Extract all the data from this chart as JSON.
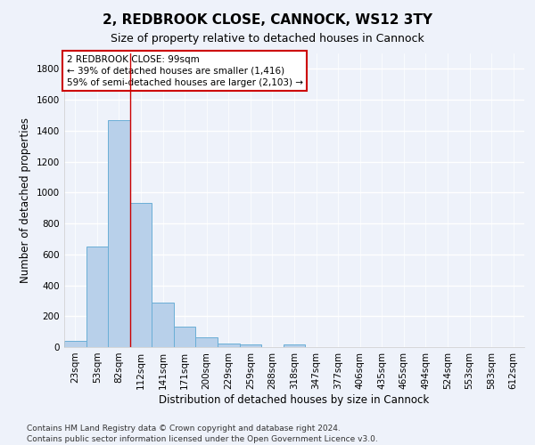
{
  "title_line1": "2, REDBROOK CLOSE, CANNOCK, WS12 3TY",
  "title_line2": "Size of property relative to detached houses in Cannock",
  "xlabel": "Distribution of detached houses by size in Cannock",
  "ylabel": "Number of detached properties",
  "bin_labels": [
    "23sqm",
    "53sqm",
    "82sqm",
    "112sqm",
    "141sqm",
    "171sqm",
    "200sqm",
    "229sqm",
    "259sqm",
    "288sqm",
    "318sqm",
    "347sqm",
    "377sqm",
    "406sqm",
    "435sqm",
    "465sqm",
    "494sqm",
    "524sqm",
    "553sqm",
    "583sqm",
    "612sqm"
  ],
  "bar_values": [
    40,
    650,
    1470,
    935,
    290,
    130,
    65,
    25,
    15,
    0,
    15,
    0,
    0,
    0,
    0,
    0,
    0,
    0,
    0,
    0,
    0
  ],
  "bar_color": "#b8d0ea",
  "bar_edge_color": "#6aaed6",
  "vline_x": 2.5,
  "annotation_text": "2 REDBROOK CLOSE: 99sqm\n← 39% of detached houses are smaller (1,416)\n59% of semi-detached houses are larger (2,103) →",
  "annotation_box_color": "#ffffff",
  "annotation_box_edge_color": "#cc0000",
  "ylim": [
    0,
    1900
  ],
  "yticks": [
    0,
    200,
    400,
    600,
    800,
    1000,
    1200,
    1400,
    1600,
    1800
  ],
  "background_color": "#eef2fa",
  "grid_color": "#ffffff",
  "footnote": "Contains HM Land Registry data © Crown copyright and database right 2024.\nContains public sector information licensed under the Open Government Licence v3.0.",
  "title_fontsize": 11,
  "subtitle_fontsize": 9,
  "axis_label_fontsize": 8.5,
  "tick_fontsize": 7.5,
  "annotation_fontsize": 7.5,
  "footnote_fontsize": 6.5
}
